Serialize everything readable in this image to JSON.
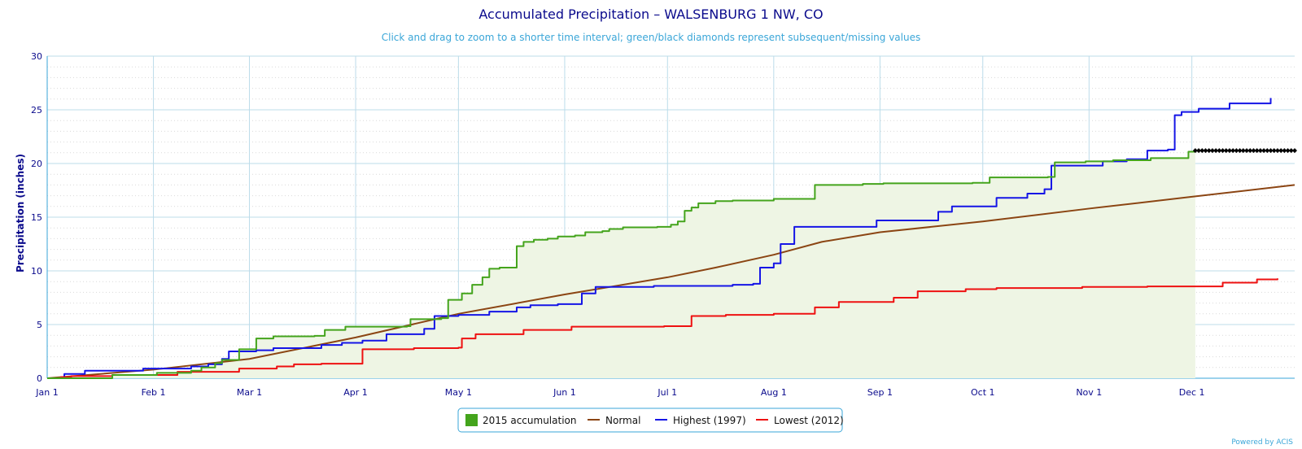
{
  "chart_data": {
    "type": "line",
    "title": "Accumulated Precipitation – WALSENBURG 1 NW, CO",
    "subtitle": "Click and drag to zoom to a shorter time interval; green/black diamonds represent subsequent/missing values",
    "ylabel": "Precipitation (inches)",
    "xlabel": "",
    "xlim": [
      "2015-01-01",
      "2015-12-31"
    ],
    "ylim": [
      0,
      30
    ],
    "yticks": [
      0,
      5,
      10,
      15,
      20,
      25,
      30
    ],
    "xticks": [
      {
        "date": "2015-01-01",
        "label": "Jan 1"
      },
      {
        "date": "2015-02-01",
        "label": "Feb 1"
      },
      {
        "date": "2015-03-01",
        "label": "Mar 1"
      },
      {
        "date": "2015-04-01",
        "label": "Apr 1"
      },
      {
        "date": "2015-05-01",
        "label": "May 1"
      },
      {
        "date": "2015-06-01",
        "label": "Jun 1"
      },
      {
        "date": "2015-07-01",
        "label": "Jul 1"
      },
      {
        "date": "2015-08-01",
        "label": "Aug 1"
      },
      {
        "date": "2015-09-01",
        "label": "Sep 1"
      },
      {
        "date": "2015-10-01",
        "label": "Oct 1"
      },
      {
        "date": "2015-11-01",
        "label": "Nov 1"
      },
      {
        "date": "2015-12-01",
        "label": "Dec 1"
      }
    ],
    "grid": true,
    "legend_position": "bottom-center",
    "series": [
      {
        "name": "2015 accumulation",
        "kind": "area-step",
        "color": "#44a41c",
        "fill": "#eef5e4",
        "points": [
          [
            "2015-01-01",
            0
          ],
          [
            "2015-01-20",
            0.3
          ],
          [
            "2015-02-02",
            0.5
          ],
          [
            "2015-02-12",
            0.7
          ],
          [
            "2015-02-15",
            1.0
          ],
          [
            "2015-02-19",
            1.4
          ],
          [
            "2015-02-21",
            1.7
          ],
          [
            "2015-02-26",
            2.7
          ],
          [
            "2015-03-03",
            3.7
          ],
          [
            "2015-03-08",
            3.9
          ],
          [
            "2015-03-20",
            3.95
          ],
          [
            "2015-03-23",
            4.5
          ],
          [
            "2015-03-29",
            4.8
          ],
          [
            "2015-04-16",
            4.85
          ],
          [
            "2015-04-17",
            5.5
          ],
          [
            "2015-04-26",
            5.6
          ],
          [
            "2015-04-28",
            7.3
          ],
          [
            "2015-05-02",
            7.9
          ],
          [
            "2015-05-05",
            8.7
          ],
          [
            "2015-05-08",
            9.4
          ],
          [
            "2015-05-10",
            10.2
          ],
          [
            "2015-05-13",
            10.3
          ],
          [
            "2015-05-18",
            12.3
          ],
          [
            "2015-05-20",
            12.7
          ],
          [
            "2015-05-23",
            12.9
          ],
          [
            "2015-05-27",
            13.0
          ],
          [
            "2015-05-30",
            13.2
          ],
          [
            "2015-06-04",
            13.3
          ],
          [
            "2015-06-07",
            13.6
          ],
          [
            "2015-06-12",
            13.7
          ],
          [
            "2015-06-14",
            13.9
          ],
          [
            "2015-06-18",
            14.05
          ],
          [
            "2015-06-28",
            14.1
          ],
          [
            "2015-07-02",
            14.3
          ],
          [
            "2015-07-04",
            14.6
          ],
          [
            "2015-07-06",
            15.6
          ],
          [
            "2015-07-08",
            15.9
          ],
          [
            "2015-07-10",
            16.3
          ],
          [
            "2015-07-15",
            16.5
          ],
          [
            "2015-07-20",
            16.55
          ],
          [
            "2015-08-01",
            16.7
          ],
          [
            "2015-08-13",
            18.0
          ],
          [
            "2015-08-27",
            18.1
          ],
          [
            "2015-09-02",
            18.15
          ],
          [
            "2015-09-28",
            18.2
          ],
          [
            "2015-10-03",
            18.7
          ],
          [
            "2015-10-20",
            18.75
          ],
          [
            "2015-10-22",
            20.1
          ],
          [
            "2015-10-31",
            20.2
          ],
          [
            "2015-11-08",
            20.3
          ],
          [
            "2015-11-19",
            20.5
          ],
          [
            "2015-11-26",
            20.5
          ],
          [
            "2015-11-30",
            21.1
          ],
          [
            "2015-12-02",
            21.2
          ]
        ]
      },
      {
        "name": "Normal",
        "kind": "line",
        "color": "#8b4513",
        "points": [
          [
            "2015-01-01",
            0
          ],
          [
            "2015-02-01",
            0.8
          ],
          [
            "2015-03-01",
            1.8
          ],
          [
            "2015-04-01",
            3.8
          ],
          [
            "2015-05-01",
            6.0
          ],
          [
            "2015-06-01",
            7.8
          ],
          [
            "2015-07-01",
            9.4
          ],
          [
            "2015-07-15",
            10.3
          ],
          [
            "2015-08-01",
            11.5
          ],
          [
            "2015-08-15",
            12.7
          ],
          [
            "2015-09-01",
            13.6
          ],
          [
            "2015-10-01",
            14.6
          ],
          [
            "2015-11-01",
            15.8
          ],
          [
            "2015-12-01",
            16.9
          ],
          [
            "2015-12-31",
            18.0
          ]
        ]
      },
      {
        "name": "Highest (1997)",
        "kind": "step",
        "color": "#1515e6",
        "points": [
          [
            "2015-01-01",
            0
          ],
          [
            "2015-01-06",
            0.4
          ],
          [
            "2015-01-12",
            0.7
          ],
          [
            "2015-01-29",
            0.9
          ],
          [
            "2015-02-12",
            1.1
          ],
          [
            "2015-02-17",
            1.3
          ],
          [
            "2015-02-21",
            1.8
          ],
          [
            "2015-02-23",
            2.5
          ],
          [
            "2015-03-03",
            2.6
          ],
          [
            "2015-03-08",
            2.8
          ],
          [
            "2015-03-22",
            3.1
          ],
          [
            "2015-03-28",
            3.3
          ],
          [
            "2015-04-03",
            3.5
          ],
          [
            "2015-04-10",
            4.1
          ],
          [
            "2015-04-21",
            4.6
          ],
          [
            "2015-04-24",
            5.8
          ],
          [
            "2015-05-01",
            5.9
          ],
          [
            "2015-05-10",
            6.2
          ],
          [
            "2015-05-18",
            6.6
          ],
          [
            "2015-05-22",
            6.8
          ],
          [
            "2015-05-30",
            6.9
          ],
          [
            "2015-06-06",
            7.9
          ],
          [
            "2015-06-10",
            8.5
          ],
          [
            "2015-06-27",
            8.6
          ],
          [
            "2015-07-20",
            8.7
          ],
          [
            "2015-07-26",
            8.8
          ],
          [
            "2015-07-28",
            10.3
          ],
          [
            "2015-08-01",
            10.7
          ],
          [
            "2015-08-03",
            12.5
          ],
          [
            "2015-08-07",
            14.1
          ],
          [
            "2015-08-31",
            14.7
          ],
          [
            "2015-09-18",
            15.5
          ],
          [
            "2015-09-22",
            16.0
          ],
          [
            "2015-10-05",
            16.8
          ],
          [
            "2015-10-14",
            17.2
          ],
          [
            "2015-10-19",
            17.6
          ],
          [
            "2015-10-21",
            19.8
          ],
          [
            "2015-11-05",
            20.2
          ],
          [
            "2015-11-12",
            20.4
          ],
          [
            "2015-11-18",
            21.2
          ],
          [
            "2015-11-24",
            21.3
          ],
          [
            "2015-11-26",
            24.5
          ],
          [
            "2015-11-28",
            24.8
          ],
          [
            "2015-12-03",
            25.1
          ],
          [
            "2015-12-12",
            25.6
          ],
          [
            "2015-12-24",
            26.1
          ]
        ]
      },
      {
        "name": "Lowest (2012)",
        "kind": "step",
        "color": "#ee1111",
        "points": [
          [
            "2015-01-01",
            0
          ],
          [
            "2015-01-05",
            0.1
          ],
          [
            "2015-01-08",
            0.2
          ],
          [
            "2015-01-20",
            0.3
          ],
          [
            "2015-02-08",
            0.6
          ],
          [
            "2015-02-26",
            0.9
          ],
          [
            "2015-03-09",
            1.1
          ],
          [
            "2015-03-14",
            1.3
          ],
          [
            "2015-03-22",
            1.35
          ],
          [
            "2015-04-03",
            2.7
          ],
          [
            "2015-04-18",
            2.8
          ],
          [
            "2015-05-01",
            2.85
          ],
          [
            "2015-05-02",
            3.7
          ],
          [
            "2015-05-06",
            4.1
          ],
          [
            "2015-05-20",
            4.5
          ],
          [
            "2015-06-03",
            4.8
          ],
          [
            "2015-06-30",
            4.85
          ],
          [
            "2015-07-08",
            5.8
          ],
          [
            "2015-07-18",
            5.9
          ],
          [
            "2015-08-01",
            6.0
          ],
          [
            "2015-08-13",
            6.6
          ],
          [
            "2015-08-20",
            7.1
          ],
          [
            "2015-09-05",
            7.5
          ],
          [
            "2015-09-12",
            8.1
          ],
          [
            "2015-09-26",
            8.3
          ],
          [
            "2015-10-05",
            8.4
          ],
          [
            "2015-10-30",
            8.5
          ],
          [
            "2015-11-18",
            8.55
          ],
          [
            "2015-12-10",
            8.9
          ],
          [
            "2015-12-20",
            9.2
          ],
          [
            "2015-12-26",
            9.3
          ]
        ]
      }
    ],
    "missing_markers": {
      "color": "#000000",
      "value": 21.2,
      "from": "2015-12-02",
      "to": "2015-12-31"
    }
  },
  "legend": {
    "items": [
      {
        "label": "2015 accumulation",
        "color": "#44a41c",
        "kind": "box"
      },
      {
        "label": "Normal",
        "color": "#8b4513",
        "kind": "line"
      },
      {
        "label": "Highest (1997)",
        "color": "#1515e6",
        "kind": "line"
      },
      {
        "label": "Lowest (2012)",
        "color": "#ee1111",
        "kind": "line"
      }
    ]
  },
  "credit": "Powered by ACIS"
}
